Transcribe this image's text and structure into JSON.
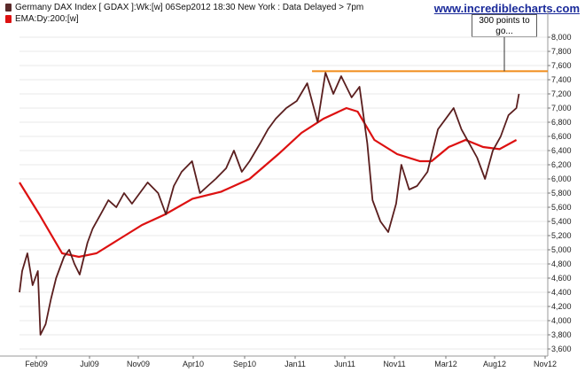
{
  "header": {
    "title": "Germany DAX Index [ GDAX ]:Wk:[w]   06Sep2012 18:30 New York : Data Delayed > 7pm",
    "ema_label": "EMA:Dy:200:[w]",
    "watermark": "www.incrediblecharts.com"
  },
  "annotation": {
    "text": "300 points to go..."
  },
  "colors": {
    "price": "#5a1e1e",
    "ema": "#dd1111",
    "resistance": "#f08c1a",
    "title_swatch": "#5a2a2a",
    "ema_swatch": "#dd1111",
    "grid": "#e8e8e8"
  },
  "chart_data": {
    "type": "line",
    "title": "Germany DAX Index [ GDAX ]:Wk:[w]",
    "xlabel": "",
    "ylabel": "",
    "x_ticks": [
      "Feb09",
      "Jul09",
      "Nov09",
      "Apr10",
      "Sep10",
      "Jan11",
      "Jun11",
      "Nov11",
      "Mar12",
      "Aug12",
      "Nov12"
    ],
    "y_ticks": [
      3600,
      3800,
      4000,
      4200,
      4400,
      4600,
      4800,
      5000,
      5200,
      5400,
      5600,
      5800,
      6000,
      6200,
      6400,
      6600,
      6800,
      7000,
      7200,
      7400,
      7600,
      7800,
      8000
    ],
    "ylim": [
      3500,
      8250
    ],
    "xlim": [
      "2009-01-07",
      "2012-11-21"
    ],
    "grid": true,
    "legend_position": "top-left",
    "resistance_line": {
      "y": 7520,
      "x_start": "2011-03-01",
      "x_end": "2012-11-21"
    },
    "series": [
      {
        "name": "Germany DAX Index [ GDAX ]:Wk:[w]",
        "x": [
          "2009-01-07",
          "2009-01-14",
          "2009-01-28",
          "2009-02-11",
          "2009-02-25",
          "2009-03-04",
          "2009-03-18",
          "2009-04-01",
          "2009-04-15",
          "2009-05-06",
          "2009-05-20",
          "2009-06-03",
          "2009-06-17",
          "2009-07-08",
          "2009-07-22",
          "2009-08-12",
          "2009-09-02",
          "2009-09-23",
          "2009-10-14",
          "2009-11-04",
          "2009-11-25",
          "2009-12-16",
          "2010-01-13",
          "2010-02-03",
          "2010-02-24",
          "2010-03-17",
          "2010-04-14",
          "2010-05-05",
          "2010-05-26",
          "2010-06-16",
          "2010-07-14",
          "2010-08-04",
          "2010-08-25",
          "2010-09-15",
          "2010-10-13",
          "2010-11-03",
          "2010-11-24",
          "2010-12-22",
          "2011-01-19",
          "2011-02-16",
          "2011-03-16",
          "2011-04-06",
          "2011-04-27",
          "2011-05-18",
          "2011-06-15",
          "2011-07-06",
          "2011-07-27",
          "2011-08-10",
          "2011-08-31",
          "2011-09-21",
          "2011-10-12",
          "2011-10-26",
          "2011-11-16",
          "2011-12-07",
          "2012-01-04",
          "2012-02-01",
          "2012-03-14",
          "2012-04-04",
          "2012-04-25",
          "2012-05-16",
          "2012-06-06",
          "2012-06-27",
          "2012-07-18",
          "2012-08-08",
          "2012-08-29",
          "2012-09-05"
        ],
        "y": [
          4400,
          4700,
          4950,
          4500,
          4700,
          3800,
          3950,
          4300,
          4600,
          4900,
          5000,
          4800,
          4650,
          5100,
          5300,
          5500,
          5700,
          5600,
          5800,
          5650,
          5800,
          5950,
          5800,
          5500,
          5900,
          6100,
          6250,
          5800,
          5900,
          6000,
          6150,
          6400,
          6100,
          6250,
          6500,
          6700,
          6850,
          7000,
          7100,
          7350,
          6800,
          7500,
          7200,
          7450,
          7150,
          7300,
          6500,
          5700,
          5400,
          5250,
          5650,
          6200,
          5850,
          5900,
          6100,
          6700,
          7000,
          6700,
          6500,
          6300,
          6000,
          6400,
          6600,
          6900,
          7000,
          7200
        ]
      },
      {
        "name": "EMA:Dy:200:[w]",
        "x": [
          "2009-01-07",
          "2009-03-01",
          "2009-05-01",
          "2009-06-15",
          "2009-08-01",
          "2009-10-01",
          "2009-12-01",
          "2010-02-01",
          "2010-04-15",
          "2010-07-01",
          "2010-09-15",
          "2010-12-01",
          "2011-02-01",
          "2011-04-01",
          "2011-06-01",
          "2011-07-01",
          "2011-08-15",
          "2011-10-15",
          "2011-12-15",
          "2012-01-15",
          "2012-03-01",
          "2012-04-15",
          "2012-06-01",
          "2012-07-15",
          "2012-08-29"
        ],
        "y": [
          5950,
          5500,
          4950,
          4900,
          4950,
          5150,
          5350,
          5500,
          5720,
          5820,
          6000,
          6350,
          6650,
          6850,
          7000,
          6950,
          6550,
          6350,
          6250,
          6250,
          6450,
          6550,
          6450,
          6420,
          6550
        ]
      }
    ]
  }
}
